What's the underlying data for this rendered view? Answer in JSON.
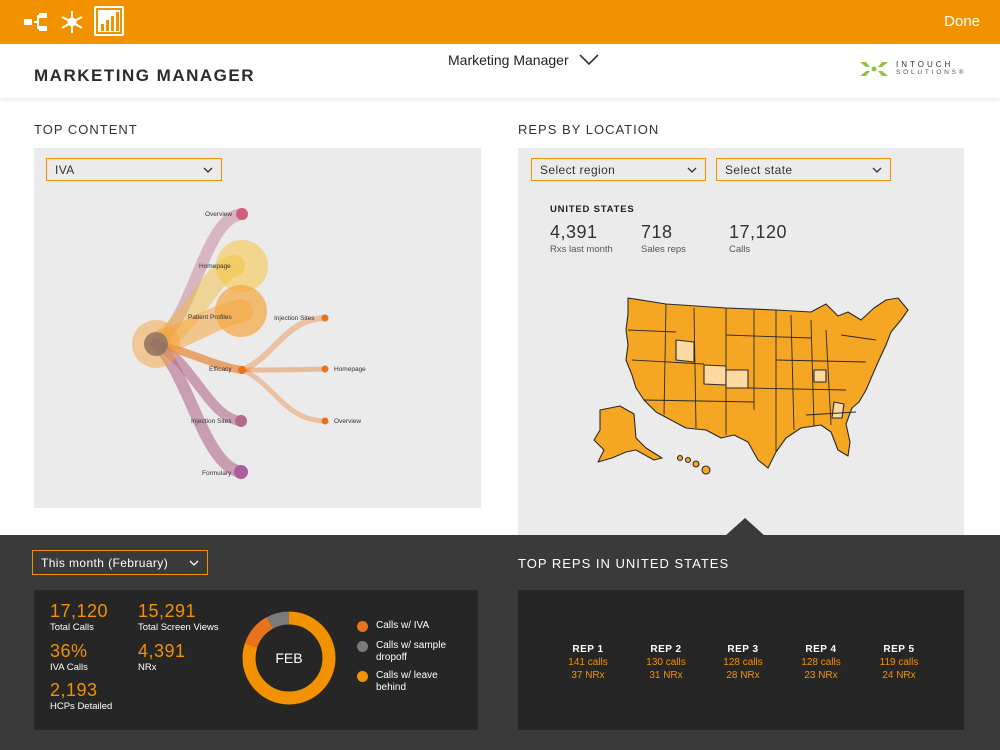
{
  "topbar": {
    "icons": [
      "hierarchy-icon",
      "network-icon",
      "chart-icon"
    ],
    "done_label": "Done",
    "color": "#f39200"
  },
  "header": {
    "title": "MARKETING MANAGER",
    "role_select": "Marketing Manager",
    "logo": {
      "line1": "INTOUCH",
      "line2": "SOLUTIONS®"
    }
  },
  "top_content": {
    "label": "TOP CONTENT",
    "dropdown_value": "IVA",
    "flow_labels": {
      "overview_top": "Overview",
      "homepage_left": "Homepage",
      "patient_profiles": "Patient Profiles",
      "injection_sites_right": "Injection Sites",
      "efficacy": "Efficacy",
      "homepage_right": "Homepage",
      "injection_sites_bottom": "Injection Sites",
      "overview_right": "Overview",
      "formulary": "Formulary"
    }
  },
  "reps_by_location": {
    "label": "REPS BY LOCATION",
    "region_placeholder": "Select region",
    "state_placeholder": "Select state",
    "country": "UNITED STATES",
    "stats": [
      {
        "value": "4,391",
        "label": "Rxs last month"
      },
      {
        "value": "718",
        "label": "Sales reps"
      },
      {
        "value": "17,120",
        "label": "Calls"
      }
    ],
    "map_color": "#f5a623"
  },
  "summary": {
    "period": "This month (February)",
    "kpis": [
      {
        "value": "17,120",
        "label": "Total Calls"
      },
      {
        "value": "15,291",
        "label": "Total Screen Views"
      },
      {
        "value": "36%",
        "label": "IVA Calls"
      },
      {
        "value": "4,391",
        "label": "NRx"
      },
      {
        "value": "2,193",
        "label": "HCPs Detailed"
      }
    ],
    "donut_center": "FEB",
    "legend": [
      {
        "label_1": "Calls w/ IVA",
        "label_2": "",
        "color": "#e8731c"
      },
      {
        "label_1": "Calls w/ sample",
        "label_2": "dropoff",
        "color": "#7a7a7a"
      },
      {
        "label_1": "Calls w/ leave",
        "label_2": "behind",
        "color": "#f39200"
      }
    ]
  },
  "top_reps": {
    "title": "TOP REPS IN UNITED STATES",
    "reps": [
      {
        "name": "REP 1",
        "calls": "141 calls",
        "nrx": "37 NRx"
      },
      {
        "name": "REP 2",
        "calls": "130 calls",
        "nrx": "31 NRx"
      },
      {
        "name": "REP 3",
        "calls": "128 calls",
        "nrx": "28 NRx"
      },
      {
        "name": "REP 4",
        "calls": "128 calls",
        "nrx": "23 NRx"
      },
      {
        "name": "REP 5",
        "calls": "119 calls",
        "nrx": "24 NRx"
      }
    ]
  }
}
